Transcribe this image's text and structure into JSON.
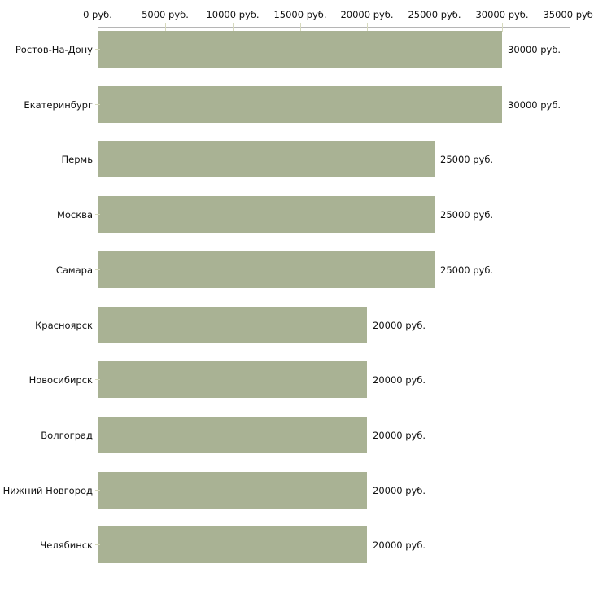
{
  "chart_data": {
    "type": "bar",
    "orientation": "horizontal",
    "title": "",
    "xlabel": "",
    "ylabel": "",
    "grid": false,
    "legend": null,
    "categories": [
      "Ростов-На-Дону",
      "Екатеринбург",
      "Пермь",
      "Москва",
      "Самара",
      "Красноярск",
      "Новосибирск",
      "Волгоград",
      "Нижний Новгород",
      "Челябинск"
    ],
    "values": [
      30000,
      30000,
      25000,
      25000,
      25000,
      20000,
      20000,
      20000,
      20000,
      20000
    ],
    "value_labels": [
      "30000 руб.",
      "30000 руб.",
      "25000 руб.",
      "25000 руб.",
      "25000 руб.",
      "20000 руб.",
      "20000 руб.",
      "20000 руб.",
      "20000 руб.",
      "20000 руб."
    ],
    "x_ticks": [
      0,
      5000,
      10000,
      15000,
      20000,
      25000,
      30000,
      35000
    ],
    "x_tick_labels": [
      "0 руб.",
      "5000 руб.",
      "10000 руб.",
      "15000 руб.",
      "20000 руб.",
      "25000 руб.",
      "30000 руб.",
      "35000 руб."
    ],
    "xlim": [
      0,
      35000
    ],
    "colors": {
      "bar": "#a9b294",
      "axis_line": "#b5b5b5",
      "tick_mark": "#d6d9bd",
      "text": "#111111",
      "background": "#ffffff"
    }
  }
}
